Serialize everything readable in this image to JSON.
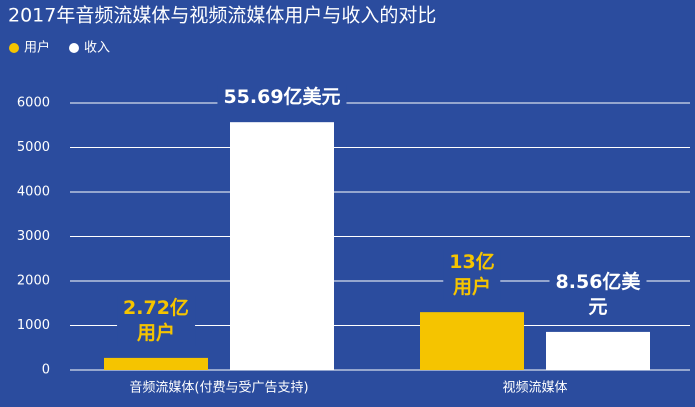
{
  "chart_data": {
    "type": "bar",
    "title": "2017年音频流媒体与视频流媒体用户与收入的对比",
    "categories": [
      "音频流媒体(付费与受广告支持)",
      "视频流媒体"
    ],
    "series": [
      {
        "name": "用户",
        "color": "#f5c400",
        "values": [
          272,
          1300
        ],
        "value_labels": [
          "2.72亿\n用户",
          "13亿\n用户"
        ]
      },
      {
        "name": "收入",
        "color": "#ffffff",
        "values": [
          5569,
          856
        ],
        "value_labels": [
          "55.69亿美元",
          "8.56亿美元"
        ]
      }
    ],
    "ylim": [
      0,
      6000
    ],
    "yticks": [
      0,
      1000,
      2000,
      3000,
      4000,
      5000,
      6000
    ],
    "grid": true
  }
}
